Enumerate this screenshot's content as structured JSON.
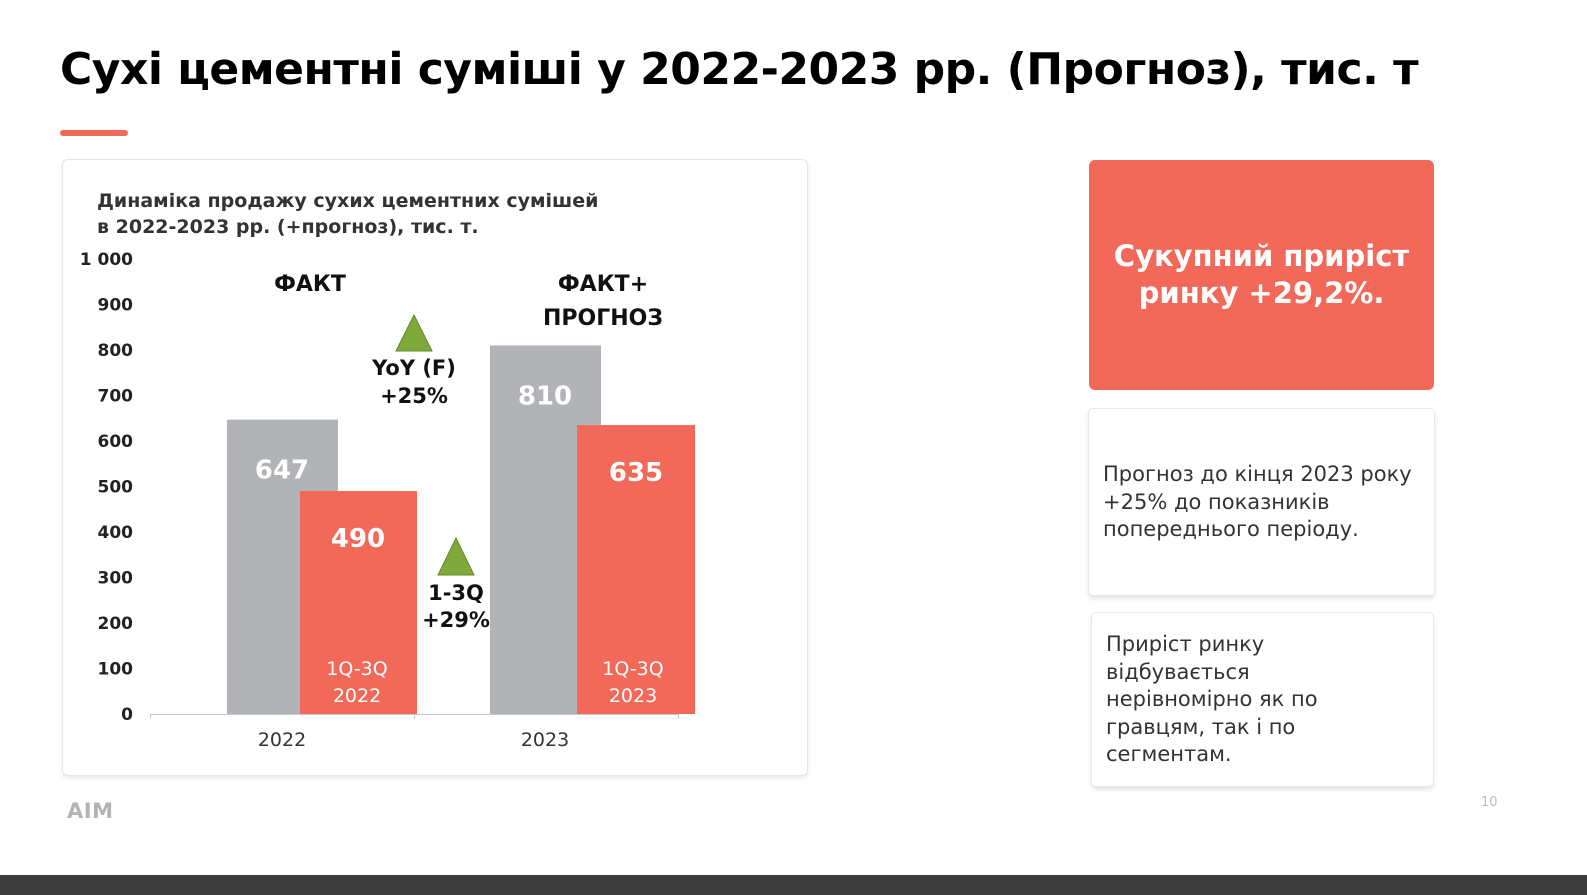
{
  "slide": {
    "title": "Сухі цементні суміші у 2022-2023 рр. (Прогноз), тис. т",
    "page_number": "10",
    "logo_text": "AIM"
  },
  "colors": {
    "accent": "#f26859",
    "bar_gray": "#b1b3b6",
    "arrow_green": "#7fa83a",
    "text_dark": "#111111"
  },
  "chart_data": {
    "type": "bar",
    "title_lines": [
      "Динаміка продажу сухих цементних сумішей",
      "в 2022-2023 рр. (+прогноз), тис. т."
    ],
    "categories": [
      "2022",
      "2023"
    ],
    "ylim": [
      0,
      1000
    ],
    "y_ticks": [
      0,
      100,
      200,
      300,
      400,
      500,
      600,
      700,
      800,
      900,
      1000
    ],
    "y_tick_labels": [
      "0",
      "100",
      "200",
      "300",
      "400",
      "500",
      "600",
      "700",
      "800",
      "900",
      "1 000"
    ],
    "series": [
      {
        "values": [
          647,
          810
        ],
        "value_labels": [
          "647",
          "810"
        ],
        "color": "#b1b3b6"
      },
      {
        "values": [
          490,
          635
        ],
        "value_labels": [
          "490",
          "635"
        ],
        "color": "#f26859",
        "bar_notes": [
          [
            "1Q-3Q",
            "2022"
          ],
          [
            "1Q-3Q",
            "2023"
          ]
        ]
      }
    ],
    "group_labels": [
      [
        "ФАКТ"
      ],
      [
        "ФАКТ+",
        "ПРОГНОЗ"
      ]
    ],
    "annotations": [
      {
        "icon": "up-triangle-icon",
        "lines": [
          "YoY (F)",
          "+25%"
        ]
      },
      {
        "icon": "up-triangle-icon",
        "lines": [
          "1-3Q",
          "+29%"
        ]
      }
    ],
    "grid": false,
    "legend": "none"
  },
  "side_panel": {
    "highlight": "Сукупний приріст ринку +29,2%.",
    "notes": [
      "Прогноз до кінця 2023 року +25% до показників попереднього періоду.",
      "Приріст ринку відбувається нерівномірно як по гравцям, так і по сегментам."
    ]
  }
}
